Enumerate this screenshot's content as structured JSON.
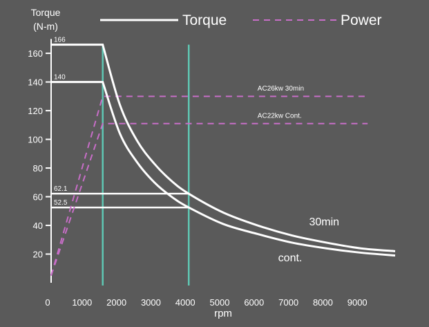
{
  "colors": {
    "background": "#5a5a5a",
    "torque_line": "#ffffff",
    "power_line": "#c86ec8",
    "speed_marker": "#5fc8b4",
    "text": "#ffffff"
  },
  "chart_data": {
    "type": "line",
    "title": "",
    "ylabel_line1": "Torque",
    "ylabel_line2": "(N-m)",
    "xlabel": "rpm",
    "xlim": [
      0,
      10000
    ],
    "ylim": [
      0,
      175
    ],
    "xticks": [
      0,
      1000,
      2000,
      3000,
      4000,
      5000,
      6000,
      7000,
      8000,
      9000
    ],
    "xtick_labels": [
      "0",
      "1000",
      "2000",
      "3000",
      "4000",
      "5000",
      "6000",
      "7000",
      "8000",
      "9000"
    ],
    "yticks": [
      20,
      40,
      60,
      80,
      100,
      120,
      140,
      160
    ],
    "ytick_labels": [
      "20",
      "40",
      "60",
      "80",
      "100",
      "120",
      "140",
      "160"
    ],
    "legend": {
      "placement": "top",
      "entries": [
        {
          "label": "Torque",
          "style": "solid"
        },
        {
          "label": "Power",
          "style": "dashed"
        }
      ]
    },
    "series": [
      {
        "name": "30min",
        "kind": "torque",
        "style": "solid",
        "x": [
          0,
          1500,
          2000,
          2500,
          3000,
          3500,
          4000,
          5000,
          6000,
          7000,
          8000,
          9000,
          10000
        ],
        "y": [
          166,
          166,
          124,
          99,
          83,
          71,
          62.1,
          49,
          40,
          33,
          28,
          24,
          22
        ]
      },
      {
        "name": "cont.",
        "kind": "torque",
        "style": "solid",
        "x": [
          0,
          1500,
          2000,
          2500,
          3000,
          3500,
          4000,
          5000,
          6000,
          7000,
          8000,
          9000,
          10000
        ],
        "y": [
          140,
          140,
          104,
          84,
          70,
          60,
          52.5,
          41,
          34,
          28,
          24,
          21,
          19
        ]
      },
      {
        "name": "AC26kw 30min",
        "kind": "power",
        "style": "dashed",
        "x": [
          0,
          1500,
          9200
        ],
        "y": [
          5,
          130,
          130
        ]
      },
      {
        "name": "AC22kw Cont.",
        "kind": "power",
        "style": "dashed",
        "x": [
          0,
          1500,
          9200
        ],
        "y": [
          5,
          111,
          111
        ]
      }
    ],
    "reference_levels": [
      {
        "label": "166",
        "y": 166,
        "x_end": 1500
      },
      {
        "label": "140",
        "y": 140,
        "x_end": 1500
      },
      {
        "label": "62.1",
        "y": 62.1,
        "x_end": 4000
      },
      {
        "label": "52.5",
        "y": 52.5,
        "x_end": 4000
      }
    ],
    "speed_markers": [
      1500,
      4000
    ],
    "annotations": [
      {
        "text": "AC26kw  30min",
        "x": 6000,
        "y": 134
      },
      {
        "text": "AC22kw  Cont.",
        "x": 6000,
        "y": 115
      },
      {
        "text": "30min",
        "x": 7500,
        "y": 40
      },
      {
        "text": "cont.",
        "x": 6600,
        "y": 15
      }
    ],
    "curve_labels": {
      "upper": "30min",
      "lower": "cont."
    },
    "grid": false
  }
}
